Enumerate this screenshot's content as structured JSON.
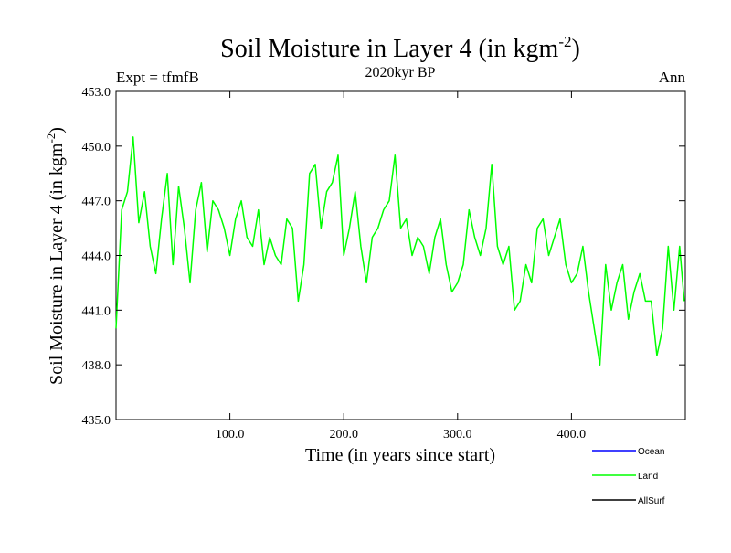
{
  "chart_data": {
    "type": "line",
    "title_main": "Soil Moisture in Layer 4 (in kgm",
    "title_sup": "-2",
    "title_close": ")",
    "subtitle": "2020kyr BP",
    "left_label": "Expt = tfmfB",
    "right_label": "Ann",
    "xlabel": "Time (in years since start)",
    "ylabel_main": "Soil Moisture in Layer 4 (in kgm",
    "ylabel_sup": "-2",
    "ylabel_close": ")",
    "xlim": [
      0,
      500
    ],
    "ylim": [
      435.0,
      453.0
    ],
    "x_ticks": [
      100,
      200,
      300,
      400
    ],
    "x_tick_labels": [
      "100.0",
      "200.0",
      "300.0",
      "400.0"
    ],
    "y_ticks": [
      435,
      438,
      441,
      444,
      447,
      450,
      453
    ],
    "y_tick_labels": [
      "435.0",
      "438.0",
      "441.0",
      "444.0",
      "447.0",
      "450.0",
      "453.0"
    ],
    "legend": [
      {
        "name": "Ocean",
        "color": "#0000ff"
      },
      {
        "name": "Land",
        "color": "#00ff00"
      },
      {
        "name": "AllSurf",
        "color": "#000000"
      }
    ],
    "series": [
      {
        "name": "Land",
        "color": "#00ff00",
        "x": [
          0,
          5,
          10,
          15,
          20,
          25,
          30,
          35,
          40,
          45,
          50,
          55,
          60,
          65,
          70,
          75,
          80,
          85,
          90,
          95,
          100,
          105,
          110,
          115,
          120,
          125,
          130,
          135,
          140,
          145,
          150,
          155,
          160,
          165,
          170,
          175,
          180,
          185,
          190,
          195,
          200,
          205,
          210,
          215,
          220,
          225,
          230,
          235,
          240,
          245,
          250,
          255,
          260,
          265,
          270,
          275,
          280,
          285,
          290,
          295,
          300,
          305,
          310,
          315,
          320,
          325,
          330,
          335,
          340,
          345,
          350,
          355,
          360,
          365,
          370,
          375,
          380,
          385,
          390,
          395,
          400,
          405,
          410,
          415,
          420,
          425,
          430,
          435,
          440,
          445,
          450,
          455,
          460,
          465,
          470,
          475,
          480,
          485,
          490,
          495,
          499
        ],
        "values": [
          440.0,
          446.5,
          447.5,
          450.5,
          445.8,
          447.5,
          444.5,
          443.0,
          446.0,
          448.5,
          443.5,
          447.8,
          445.5,
          442.5,
          446.5,
          448.0,
          444.2,
          447.0,
          446.5,
          445.5,
          444.0,
          446.0,
          447.0,
          445.0,
          444.5,
          446.5,
          443.5,
          445.0,
          444.0,
          443.5,
          446.0,
          445.5,
          441.5,
          443.5,
          448.5,
          449.0,
          445.5,
          447.5,
          448.0,
          449.5,
          444.0,
          445.5,
          447.5,
          444.5,
          442.5,
          445.0,
          445.5,
          446.5,
          447.0,
          449.5,
          445.5,
          446.0,
          444.0,
          445.0,
          444.5,
          443.0,
          445.0,
          446.0,
          443.5,
          442.0,
          442.5,
          443.5,
          446.5,
          445.0,
          444.0,
          445.5,
          449.0,
          444.5,
          443.5,
          444.5,
          441.0,
          441.5,
          443.5,
          442.5,
          445.5,
          446.0,
          444.0,
          445.0,
          446.0,
          443.5,
          442.5,
          443.0,
          444.5,
          442.0,
          440.0,
          438.0,
          443.5,
          441.0,
          442.5,
          443.5,
          440.5,
          442.0,
          443.0,
          441.5,
          441.5,
          438.5,
          440.0,
          444.5,
          441.0,
          444.5,
          441.5
        ]
      },
      {
        "name": "Ocean",
        "color": "#0000ff",
        "x": [],
        "values": []
      },
      {
        "name": "AllSurf",
        "color": "#000000",
        "x": [],
        "values": []
      }
    ]
  }
}
